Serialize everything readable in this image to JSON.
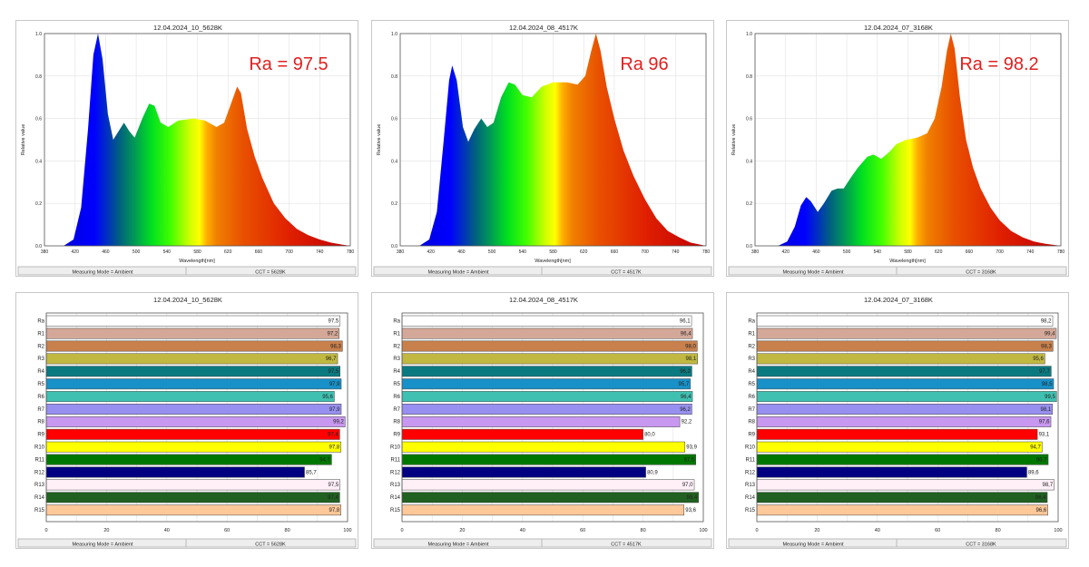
{
  "colors": {
    "ra_annotation": "#e02020",
    "frame": "#555555",
    "grid": "#dddddd"
  },
  "chart_data": [
    {
      "type": "area",
      "kind": "spectrum",
      "title": "12.04.2024_10_5628K",
      "xlabel": "Wavelength[nm]",
      "ylabel": "Relative value",
      "xlim": [
        380,
        780
      ],
      "ylim": [
        0,
        1.0
      ],
      "xticks": [
        "380",
        "420",
        "460",
        "500",
        "540",
        "580",
        "620",
        "660",
        "700",
        "740",
        "780"
      ],
      "yticks": [
        "0.0",
        "0.2",
        "0.4",
        "0.6",
        "0.8",
        "1.0"
      ],
      "annotation": "Ra = 97.5",
      "footer": [
        "Measuring Mode = Ambient",
        "CCT = 5628K"
      ],
      "points": [
        [
          380,
          0
        ],
        [
          405,
          0
        ],
        [
          418,
          0.03
        ],
        [
          428,
          0.18
        ],
        [
          437,
          0.55
        ],
        [
          444,
          0.9
        ],
        [
          450,
          1.0
        ],
        [
          456,
          0.88
        ],
        [
          463,
          0.62
        ],
        [
          470,
          0.5
        ],
        [
          477,
          0.54
        ],
        [
          484,
          0.58
        ],
        [
          491,
          0.54
        ],
        [
          498,
          0.51
        ],
        [
          508,
          0.6
        ],
        [
          517,
          0.67
        ],
        [
          524,
          0.66
        ],
        [
          532,
          0.58
        ],
        [
          542,
          0.56
        ],
        [
          555,
          0.59
        ],
        [
          575,
          0.6
        ],
        [
          590,
          0.59
        ],
        [
          605,
          0.56
        ],
        [
          615,
          0.58
        ],
        [
          625,
          0.68
        ],
        [
          632,
          0.75
        ],
        [
          637,
          0.72
        ],
        [
          645,
          0.55
        ],
        [
          655,
          0.42
        ],
        [
          665,
          0.32
        ],
        [
          680,
          0.2
        ],
        [
          695,
          0.13
        ],
        [
          710,
          0.08
        ],
        [
          725,
          0.05
        ],
        [
          740,
          0.03
        ],
        [
          755,
          0.015
        ],
        [
          770,
          0.005
        ],
        [
          780,
          0
        ]
      ]
    },
    {
      "type": "area",
      "kind": "spectrum",
      "title": "12.04.2024_08_4517K",
      "xlabel": "Wavelength[nm]",
      "ylabel": "Relative value",
      "xlim": [
        380,
        780
      ],
      "ylim": [
        0,
        1.0
      ],
      "xticks": [
        "380",
        "420",
        "460",
        "500",
        "540",
        "580",
        "620",
        "660",
        "700",
        "740",
        "780"
      ],
      "yticks": [
        "0.0",
        "0.2",
        "0.4",
        "0.6",
        "0.8",
        "1.0"
      ],
      "annotation": "Ra  96",
      "footer": [
        "Measuring Mode = Ambient",
        "CCT = 4517K"
      ],
      "points": [
        [
          380,
          0
        ],
        [
          405,
          0
        ],
        [
          418,
          0.03
        ],
        [
          428,
          0.16
        ],
        [
          437,
          0.5
        ],
        [
          444,
          0.78
        ],
        [
          448,
          0.85
        ],
        [
          454,
          0.78
        ],
        [
          462,
          0.56
        ],
        [
          469,
          0.49
        ],
        [
          477,
          0.55
        ],
        [
          486,
          0.6
        ],
        [
          494,
          0.56
        ],
        [
          502,
          0.58
        ],
        [
          512,
          0.7
        ],
        [
          522,
          0.77
        ],
        [
          530,
          0.76
        ],
        [
          540,
          0.71
        ],
        [
          552,
          0.7
        ],
        [
          565,
          0.75
        ],
        [
          580,
          0.77
        ],
        [
          598,
          0.77
        ],
        [
          612,
          0.76
        ],
        [
          622,
          0.8
        ],
        [
          630,
          0.92
        ],
        [
          636,
          1.0
        ],
        [
          642,
          0.92
        ],
        [
          650,
          0.75
        ],
        [
          660,
          0.6
        ],
        [
          672,
          0.45
        ],
        [
          685,
          0.33
        ],
        [
          700,
          0.22
        ],
        [
          715,
          0.13
        ],
        [
          730,
          0.07
        ],
        [
          745,
          0.04
        ],
        [
          760,
          0.015
        ],
        [
          780,
          0
        ]
      ]
    },
    {
      "type": "area",
      "kind": "spectrum",
      "title": "12.04.2024_07_3168K",
      "xlabel": "Wavelength[nm]",
      "ylabel": "Relative value",
      "xlim": [
        380,
        780
      ],
      "ylim": [
        0,
        1.0
      ],
      "xticks": [
        "380",
        "420",
        "460",
        "500",
        "540",
        "580",
        "620",
        "660",
        "700",
        "740",
        "780"
      ],
      "yticks": [
        "0.0",
        "0.2",
        "0.4",
        "0.6",
        "0.8",
        "1.0"
      ],
      "annotation": "Ra = 98.2",
      "footer": [
        "Measuring Mode = Ambient",
        "CCT = 3168K"
      ],
      "points": [
        [
          380,
          0
        ],
        [
          410,
          0
        ],
        [
          422,
          0.02
        ],
        [
          432,
          0.09
        ],
        [
          440,
          0.19
        ],
        [
          447,
          0.23
        ],
        [
          453,
          0.21
        ],
        [
          462,
          0.16
        ],
        [
          470,
          0.2
        ],
        [
          480,
          0.26
        ],
        [
          488,
          0.27
        ],
        [
          496,
          0.27
        ],
        [
          505,
          0.32
        ],
        [
          515,
          0.37
        ],
        [
          527,
          0.42
        ],
        [
          535,
          0.43
        ],
        [
          545,
          0.41
        ],
        [
          555,
          0.44
        ],
        [
          565,
          0.48
        ],
        [
          578,
          0.5
        ],
        [
          592,
          0.51
        ],
        [
          605,
          0.53
        ],
        [
          615,
          0.6
        ],
        [
          624,
          0.75
        ],
        [
          631,
          0.92
        ],
        [
          636,
          1.0
        ],
        [
          641,
          0.93
        ],
        [
          648,
          0.7
        ],
        [
          656,
          0.5
        ],
        [
          665,
          0.37
        ],
        [
          675,
          0.27
        ],
        [
          688,
          0.18
        ],
        [
          700,
          0.12
        ],
        [
          715,
          0.07
        ],
        [
          730,
          0.04
        ],
        [
          745,
          0.02
        ],
        [
          760,
          0.01
        ],
        [
          780,
          0
        ]
      ]
    },
    {
      "type": "bar",
      "orientation": "horizontal",
      "title": "12.04.2024_10_5628K",
      "xlim": [
        0,
        100
      ],
      "xticks": [
        "0",
        "20",
        "40",
        "60",
        "80",
        "100"
      ],
      "footer": [
        "Measuring Mode = Ambient",
        "CCT = 5628K"
      ],
      "categories": [
        "Ra",
        "R1",
        "R2",
        "R3",
        "R4",
        "R5",
        "R6",
        "R7",
        "R8",
        "R9",
        "R10",
        "R11",
        "R12",
        "R13",
        "R14",
        "R15"
      ],
      "values": [
        97.5,
        97.2,
        98.3,
        96.7,
        97.5,
        97.9,
        95.6,
        97.9,
        99.2,
        97.4,
        97.8,
        94.7,
        85.7,
        97.5,
        97.4,
        97.8
      ],
      "value_labels": [
        "97,5",
        "97,2",
        "98,3",
        "96,7",
        "97,5",
        "97,9",
        "95,6",
        "97,9",
        "99,2",
        "97,4",
        "97,8",
        "94,7",
        "85,7",
        "97,5",
        "97,4",
        "97,8"
      ]
    },
    {
      "type": "bar",
      "orientation": "horizontal",
      "title": "12.04.2024_08_4517K",
      "xlim": [
        0,
        100
      ],
      "xticks": [
        "0",
        "20",
        "40",
        "60",
        "80",
        "100"
      ],
      "footer": [
        "Measuring Mode = Ambient",
        "CCT = 4517K"
      ],
      "categories": [
        "Ra",
        "R1",
        "R2",
        "R3",
        "R4",
        "R5",
        "R6",
        "R7",
        "R8",
        "R9",
        "R10",
        "R11",
        "R12",
        "R13",
        "R14",
        "R15"
      ],
      "values": [
        96.1,
        96.4,
        98.0,
        98.1,
        96.2,
        95.7,
        96.4,
        96.2,
        92.2,
        80.0,
        93.9,
        97.5,
        80.9,
        97.0,
        98.4,
        93.6
      ],
      "value_labels": [
        "96,1",
        "96,4",
        "98,0",
        "98,1",
        "96,2",
        "95,7",
        "96,4",
        "96,2",
        "92,2",
        "80,0",
        "93,9",
        "97,5",
        "80,9",
        "97,0",
        "98,4",
        "93,6"
      ]
    },
    {
      "type": "bar",
      "orientation": "horizontal",
      "title": "12.04.2024_07_3168K",
      "xlim": [
        0,
        100
      ],
      "xticks": [
        "0",
        "20",
        "40",
        "60",
        "80",
        "100"
      ],
      "footer": [
        "Measuring Mode = Ambient",
        "CCT = 3168K"
      ],
      "categories": [
        "Ra",
        "R1",
        "R2",
        "R3",
        "R4",
        "R5",
        "R6",
        "R7",
        "R8",
        "R9",
        "R10",
        "R11",
        "R12",
        "R13",
        "R14",
        "R15"
      ],
      "values": [
        98.2,
        99.4,
        98.3,
        95.6,
        97.7,
        98.5,
        99.5,
        98.1,
        97.6,
        93.1,
        94.7,
        96.7,
        89.6,
        98.7,
        96.4,
        96.6
      ],
      "value_labels": [
        "98,2",
        "99,4",
        "98,3",
        "95,6",
        "97,7",
        "98,5",
        "99,5",
        "98,1",
        "97,6",
        "93,1",
        "94,7",
        "96,7",
        "89,6",
        "98,7",
        "96,4",
        "96,6"
      ]
    }
  ],
  "bar_colors": [
    "#ffffff",
    "#d4a898",
    "#c8804c",
    "#c0b840",
    "#0a7a80",
    "#1890c8",
    "#40c0b0",
    "#9890f0",
    "#c898f0",
    "#ff0000",
    "#ffff00",
    "#007800",
    "#000080",
    "#fff0f8",
    "#206020",
    "#ffc898"
  ]
}
